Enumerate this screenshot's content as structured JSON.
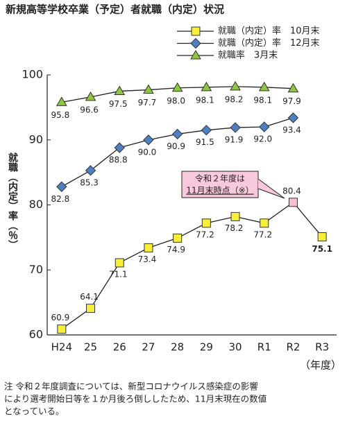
{
  "chart_data": {
    "type": "line",
    "title": "新規高等学校卒業（予定）者就職（内定）状況",
    "y_label": "就職（内定）率（％）",
    "x_unit": "（年度）",
    "categories": [
      "H24",
      "25",
      "26",
      "27",
      "28",
      "29",
      "30",
      "R1",
      "R2",
      "R3"
    ],
    "series": [
      {
        "name": "就職（内定）率　10月末",
        "color": "#f7ef3a",
        "marker": "square",
        "point_colors": [
          "#f7ef3a",
          "#f7ef3a",
          "#f7ef3a",
          "#f7ef3a",
          "#f7ef3a",
          "#f7ef3a",
          "#f7ef3a",
          "#f7ef3a",
          "#f6bdd3",
          "#f7ef3a"
        ],
        "values": [
          60.9,
          64.1,
          71.1,
          73.4,
          74.9,
          77.2,
          78.2,
          77.2,
          80.4,
          75.1
        ],
        "value_labels": [
          "60.9",
          "64.1",
          "71.1",
          "73.4",
          "74.9",
          "77.2",
          "78.2",
          "77.2",
          "80.4",
          "75.1"
        ]
      },
      {
        "name": "就職（内定）率　12月末",
        "color": "#4f7fc1",
        "marker": "diamond",
        "values": [
          82.8,
          85.3,
          88.8,
          90.0,
          90.9,
          91.5,
          91.9,
          92.0,
          93.4,
          null
        ],
        "value_labels": [
          "82.8",
          "85.3",
          "88.8",
          "90.0",
          "90.9",
          "91.5",
          "91.9",
          "92.0",
          "93.4",
          null
        ]
      },
      {
        "name": "就職率　3月末",
        "color": "#8dc63f",
        "marker": "triangle",
        "values": [
          95.8,
          96.6,
          97.5,
          97.7,
          98.0,
          98.1,
          98.2,
          98.1,
          97.9,
          null
        ],
        "value_labels": [
          "95.8",
          "96.6",
          "97.5",
          "97.7",
          "98.0",
          "98.1",
          "98.2",
          "98.1",
          "97.9",
          null
        ]
      }
    ],
    "annotation": [
      "令和２年度は",
      "11月末時点（※）"
    ],
    "ylim": [
      60,
      100
    ],
    "yticks": [
      60,
      70,
      80,
      90,
      100
    ],
    "legend": "top-right",
    "note": [
      "注 令和２年度調査については、新型コロナウイルス感染症の影響",
      "により選考開始日等を１か月後ろ倒ししたため、11月末現在の数値",
      "となっている。"
    ]
  }
}
